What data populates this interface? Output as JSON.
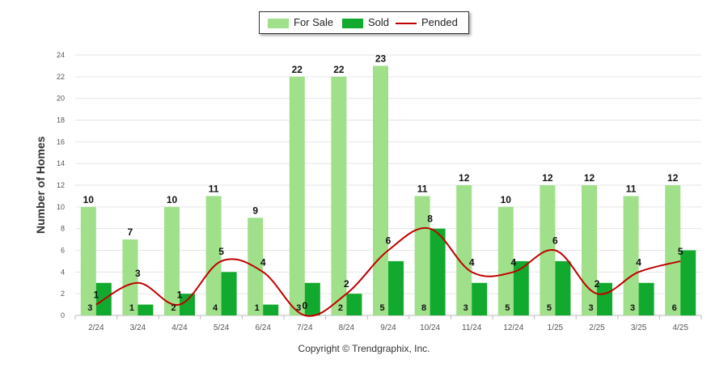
{
  "chart_data": {
    "type": "bar",
    "title": "",
    "xlabel": "",
    "ylabel": "Number of Homes",
    "ylim": [
      0,
      24
    ],
    "yticks": [
      0,
      2,
      4,
      6,
      8,
      10,
      12,
      14,
      16,
      18,
      20,
      22,
      24
    ],
    "grid": true,
    "legend_position": "top-center",
    "categories": [
      "2/24",
      "3/24",
      "4/24",
      "5/24",
      "6/24",
      "7/24",
      "8/24",
      "9/24",
      "10/24",
      "11/24",
      "12/24",
      "1/25",
      "2/25",
      "3/25",
      "4/25"
    ],
    "series": [
      {
        "name": "For Sale",
        "kind": "bar",
        "color": "#a0e08a",
        "values": [
          10,
          7,
          10,
          11,
          9,
          22,
          22,
          23,
          11,
          12,
          10,
          12,
          12,
          11,
          12
        ]
      },
      {
        "name": "Sold",
        "kind": "bar",
        "color": "#11aa2e",
        "values": [
          3,
          1,
          2,
          4,
          1,
          3,
          2,
          5,
          8,
          3,
          5,
          5,
          3,
          3,
          6
        ]
      },
      {
        "name": "Pended",
        "kind": "line",
        "color": "#c00000",
        "values": [
          1,
          3,
          1,
          5,
          4,
          0,
          2,
          6,
          8,
          4,
          4,
          6,
          2,
          4,
          5
        ]
      }
    ]
  },
  "footer": {
    "copyright": "Copyright © Trendgraphix, Inc."
  }
}
